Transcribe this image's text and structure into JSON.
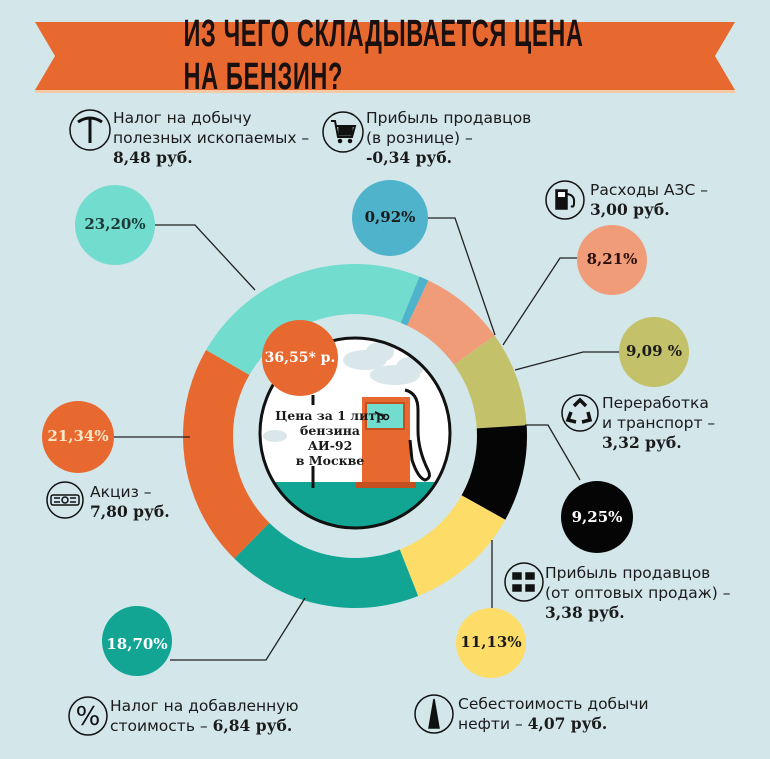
{
  "title": "ИЗ ЧЕГО СКЛАДЫВАЕТСЯ ЦЕНА НА БЕНЗИН?",
  "center": {
    "price": "36,55* р.",
    "caption_lines": [
      "Цена за 1 литр",
      "бензина",
      "АИ-92",
      "в Москве"
    ]
  },
  "colors": {
    "background": "#d3e6ea",
    "banner": "#e8692f"
  },
  "chart_data": {
    "type": "pie",
    "subtype": "donut",
    "title": "ИЗ ЧЕГО СКЛАДЫВАЕТСЯ ЦЕНА НА БЕНЗИН?",
    "unit": "%",
    "legend": "none",
    "series": [
      {
        "label": "23,20%",
        "value": 23.2,
        "color": "#72dccf",
        "icon": "pickaxe-icon",
        "name_lines": [
          "Налог на добычу",
          "полезных ископаемых –"
        ],
        "amount": "8,48 руб."
      },
      {
        "label": "0,92%",
        "value": 0.92,
        "color": "#4fb3cc",
        "icon": "shopping-cart-icon",
        "name_lines": [
          "Прибыль продавцов",
          "(в рознице) –"
        ],
        "amount": "-0,34 руб."
      },
      {
        "label": "8,21%",
        "value": 8.21,
        "color": "#f19c79",
        "icon": "fuel-pump-icon",
        "name_lines": [
          "Расходы АЗС –"
        ],
        "amount": "3,00 руб."
      },
      {
        "label": "9,09 %",
        "value": 9.09,
        "color": "#c3c26a",
        "icon": "recycle-icon",
        "name_lines": [
          "Переработка",
          "и транспорт –"
        ],
        "amount": "3,32 руб."
      },
      {
        "label": "9,25%",
        "value": 9.25,
        "color": "#050505",
        "icon": "multiple-carts-icon",
        "name_lines": [
          "Прибыль продавцов",
          "(от оптовых продаж) –"
        ],
        "amount": "3,38 руб."
      },
      {
        "label": "11,13%",
        "value": 11.13,
        "color": "#fddd67",
        "icon": "oil-derrick-icon",
        "name_lines": [
          "Себестоимость добычи",
          "нефти –"
        ],
        "amount": "4,07 руб."
      },
      {
        "label": "18,70%",
        "value": 18.7,
        "color": "#12a594",
        "icon": "percent-icon",
        "name_lines": [
          "Налог на добавленную",
          "стоимость –"
        ],
        "amount": "6,84 руб."
      },
      {
        "label": "21,34%",
        "value": 21.34,
        "color": "#e8692f",
        "icon": "excise-stamp-icon",
        "name_lines": [
          "Акциз –"
        ],
        "amount": "7,80 руб."
      }
    ]
  }
}
